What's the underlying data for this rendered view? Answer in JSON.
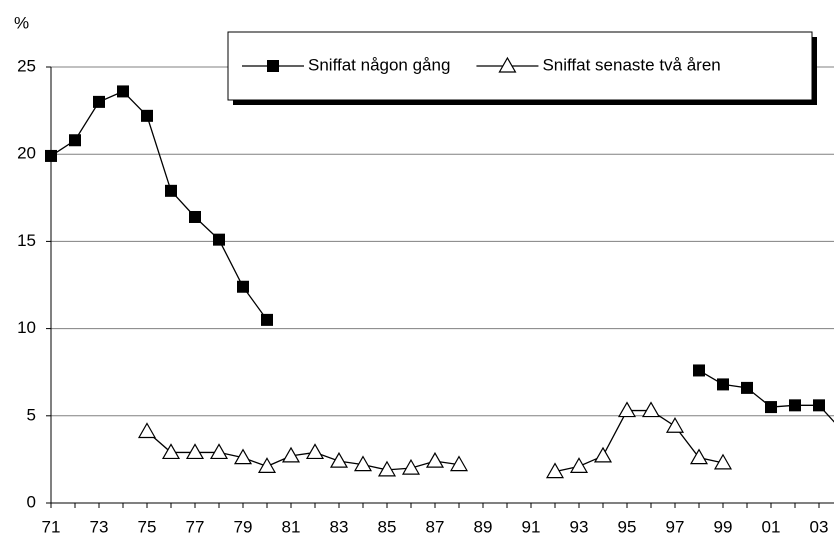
{
  "chart_data": {
    "type": "line",
    "y_label": "%",
    "categories": [
      "71",
      null,
      "73",
      null,
      "75",
      null,
      "77",
      null,
      "79",
      null,
      "81",
      null,
      "83",
      null,
      "85",
      null,
      "87",
      null,
      "89",
      null,
      "91",
      null,
      "93",
      null,
      "95",
      null,
      "97",
      null,
      "99",
      null,
      "01",
      null,
      "03",
      null
    ],
    "series": [
      {
        "name": "Sniffat någon gång",
        "color": "#000000",
        "marker": "square",
        "values": [
          19.9,
          20.8,
          23.0,
          23.6,
          22.2,
          17.9,
          16.4,
          15.1,
          12.4,
          10.5,
          null,
          null,
          null,
          null,
          null,
          null,
          null,
          null,
          null,
          null,
          null,
          null,
          null,
          null,
          null,
          null,
          null,
          7.6,
          6.8,
          6.6,
          5.5,
          5.6,
          5.6,
          4.1
        ]
      },
      {
        "name": "Sniffat senaste två åren",
        "color": "#000000",
        "marker": "triangle",
        "values": [
          null,
          null,
          null,
          null,
          4.1,
          2.9,
          2.9,
          2.9,
          2.6,
          2.1,
          2.7,
          2.9,
          2.4,
          2.2,
          1.9,
          2.0,
          2.4,
          2.2,
          null,
          null,
          null,
          1.8,
          2.1,
          2.7,
          5.3,
          5.3,
          4.4,
          2.6,
          2.3,
          null,
          null,
          null,
          null,
          null
        ]
      }
    ],
    "ylim": [
      0,
      25
    ],
    "yticks": [
      0,
      5,
      10,
      15,
      20,
      25
    ],
    "grid": true,
    "legend": "top-right"
  }
}
